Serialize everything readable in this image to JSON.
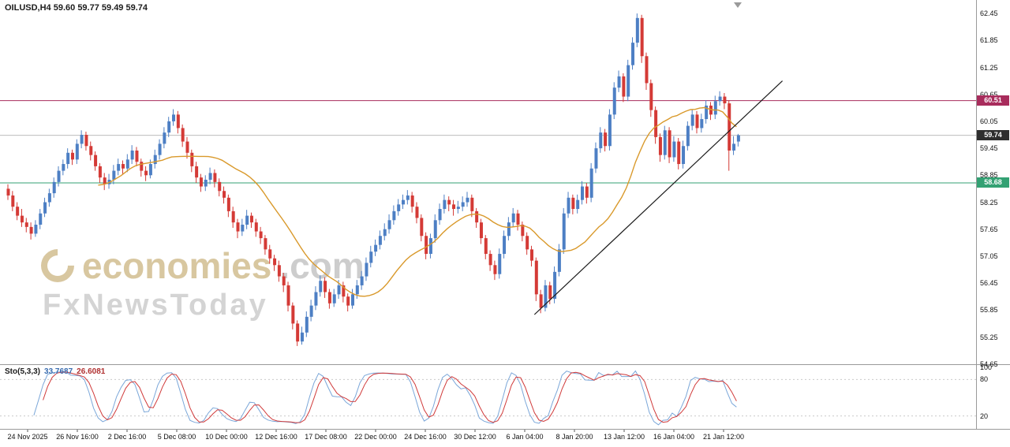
{
  "header": {
    "title": "OILUSD,H4 59.60 59.77 59.49 59.74"
  },
  "watermark": {
    "brand": "economies",
    "suffix": ".com",
    "tagline": "FxNewsToday"
  },
  "sto_header": {
    "label": "Sto(5,3,3)",
    "value_main": "33.7687",
    "value_signal": "26.6081"
  },
  "chart_data": {
    "type": "candlestick",
    "symbol": "OILUSD",
    "timeframe": "H4",
    "current_bar": {
      "open": 59.6,
      "high": 59.77,
      "low": 59.49,
      "close": 59.74
    },
    "ylim": [
      54.65,
      62.45
    ],
    "up_color": "#4d7fc4",
    "down_color": "#d43a36",
    "y_ticks": [
      "62.45",
      "61.85",
      "61.25",
      "60.65",
      "60.05",
      "59.45",
      "58.85",
      "58.25",
      "57.65",
      "57.05",
      "56.45",
      "55.85",
      "55.25",
      "54.65"
    ],
    "x_ticks": [
      "24 Nov 2025",
      "26 Nov 16:00",
      "2 Dec 16:00",
      "5 Dec 08:00",
      "10 Dec 00:00",
      "12 Dec 16:00",
      "17 Dec 08:00",
      "22 Dec 00:00",
      "24 Dec 16:00",
      "30 Dec 12:00",
      "6 Jan 04:00",
      "8 Jan 20:00",
      "13 Jan 12:00",
      "16 Jan 04:00",
      "21 Jan 12:00"
    ],
    "levels": [
      {
        "name": "resistance",
        "value": 60.51,
        "label": "60.51",
        "line_color": "#a82c5c",
        "label_bg": "#a82c5c"
      },
      {
        "name": "current-price",
        "value": 59.74,
        "label": "59.74",
        "line_color": "#bdbdbd",
        "label_bg": "#2e2e2e"
      },
      {
        "name": "support",
        "value": 58.68,
        "label": "58.68",
        "line_color": "#33a173",
        "label_bg": "#33a173"
      }
    ],
    "ma": {
      "period": 21,
      "color": "#d9992b"
    },
    "trendline": {
      "from_index": 115,
      "from_price": 55.75,
      "to_index": 169,
      "to_price": 60.95,
      "color": "#1b1b1b"
    },
    "indicator": {
      "name": "Stochastic",
      "params": "Sto(5,3,3)",
      "value_main": 33.7687,
      "value_signal": 26.6081,
      "main_color": "#7ba7d9",
      "signal_color": "#d03a3a",
      "levels": [
        20,
        80
      ],
      "axis": [
        {
          "label": "100",
          "value": 100
        },
        {
          "label": "80",
          "value": 80
        },
        {
          "label": "20",
          "value": 20
        }
      ]
    },
    "candles": [
      [
        58.55,
        58.65,
        58.3,
        58.4
      ],
      [
        58.4,
        58.5,
        58.05,
        58.15
      ],
      [
        58.15,
        58.25,
        57.85,
        57.95
      ],
      [
        57.95,
        58.1,
        57.7,
        57.8
      ],
      [
        57.8,
        57.9,
        57.58,
        57.7
      ],
      [
        57.7,
        57.8,
        57.42,
        57.55
      ],
      [
        57.55,
        57.85,
        57.48,
        57.75
      ],
      [
        57.75,
        58.1,
        57.65,
        58.0
      ],
      [
        58.0,
        58.35,
        57.92,
        58.25
      ],
      [
        58.25,
        58.55,
        58.15,
        58.45
      ],
      [
        58.45,
        58.8,
        58.35,
        58.7
      ],
      [
        58.7,
        59.05,
        58.6,
        58.95
      ],
      [
        58.95,
        59.2,
        58.85,
        59.1
      ],
      [
        59.1,
        59.45,
        59.0,
        59.35
      ],
      [
        59.35,
        59.42,
        59.08,
        59.2
      ],
      [
        59.2,
        59.65,
        59.1,
        59.55
      ],
      [
        59.55,
        59.85,
        59.45,
        59.75
      ],
      [
        59.75,
        59.82,
        59.4,
        59.5
      ],
      [
        59.5,
        59.6,
        59.18,
        59.3
      ],
      [
        59.3,
        59.38,
        58.95,
        59.05
      ],
      [
        59.05,
        59.12,
        58.68,
        58.8
      ],
      [
        58.8,
        58.9,
        58.52,
        58.65
      ],
      [
        58.65,
        58.88,
        58.55,
        58.75
      ],
      [
        58.75,
        59.08,
        58.65,
        58.95
      ],
      [
        58.95,
        59.22,
        58.85,
        59.1
      ],
      [
        59.1,
        59.18,
        58.88,
        59.0
      ],
      [
        59.0,
        59.32,
        58.92,
        59.2
      ],
      [
        59.2,
        59.52,
        59.1,
        59.4
      ],
      [
        59.4,
        59.48,
        59.05,
        59.15
      ],
      [
        59.15,
        59.22,
        58.82,
        58.95
      ],
      [
        58.95,
        59.05,
        58.72,
        58.85
      ],
      [
        58.85,
        59.2,
        58.78,
        59.1
      ],
      [
        59.1,
        59.42,
        59.0,
        59.3
      ],
      [
        59.3,
        59.65,
        59.2,
        59.55
      ],
      [
        59.55,
        59.92,
        59.45,
        59.8
      ],
      [
        59.8,
        60.15,
        59.7,
        60.05
      ],
      [
        60.05,
        60.32,
        59.95,
        60.2
      ],
      [
        60.2,
        60.28,
        59.78,
        59.9
      ],
      [
        59.9,
        59.98,
        59.48,
        59.6
      ],
      [
        59.6,
        59.7,
        59.22,
        59.35
      ],
      [
        59.35,
        59.42,
        58.92,
        59.05
      ],
      [
        59.05,
        59.15,
        58.68,
        58.8
      ],
      [
        58.8,
        58.88,
        58.48,
        58.6
      ],
      [
        58.6,
        58.85,
        58.5,
        58.75
      ],
      [
        58.75,
        59.02,
        58.65,
        58.9
      ],
      [
        58.9,
        58.98,
        58.58,
        58.7
      ],
      [
        58.7,
        58.78,
        58.38,
        58.5
      ],
      [
        58.5,
        58.6,
        58.22,
        58.35
      ],
      [
        58.35,
        58.42,
        57.92,
        58.05
      ],
      [
        58.05,
        58.15,
        57.68,
        57.8
      ],
      [
        57.8,
        57.88,
        57.45,
        57.6
      ],
      [
        57.6,
        57.88,
        57.5,
        57.75
      ],
      [
        57.75,
        58.08,
        57.65,
        57.95
      ],
      [
        57.95,
        58.02,
        57.68,
        57.8
      ],
      [
        57.8,
        57.88,
        57.48,
        57.6
      ],
      [
        57.6,
        57.7,
        57.32,
        57.45
      ],
      [
        57.45,
        57.52,
        57.08,
        57.2
      ],
      [
        57.2,
        57.3,
        56.88,
        57.0
      ],
      [
        57.0,
        57.08,
        56.72,
        56.85
      ],
      [
        56.85,
        56.95,
        56.48,
        56.6
      ],
      [
        56.6,
        56.68,
        56.25,
        56.4
      ],
      [
        56.4,
        56.48,
        55.82,
        55.95
      ],
      [
        55.95,
        56.02,
        55.42,
        55.55
      ],
      [
        55.55,
        55.62,
        55.05,
        55.15
      ],
      [
        55.15,
        55.48,
        55.08,
        55.35
      ],
      [
        55.35,
        55.82,
        55.25,
        55.7
      ],
      [
        55.7,
        56.08,
        55.6,
        55.95
      ],
      [
        55.95,
        56.38,
        55.85,
        56.25
      ],
      [
        56.25,
        56.62,
        56.15,
        56.5
      ],
      [
        56.5,
        56.58,
        56.12,
        56.25
      ],
      [
        56.25,
        56.32,
        55.88,
        56.0
      ],
      [
        56.0,
        56.32,
        55.92,
        56.2
      ],
      [
        56.2,
        56.52,
        56.1,
        56.4
      ],
      [
        56.4,
        56.48,
        56.02,
        56.15
      ],
      [
        56.15,
        56.22,
        55.82,
        55.95
      ],
      [
        55.95,
        56.32,
        55.88,
        56.2
      ],
      [
        56.2,
        56.52,
        56.1,
        56.4
      ],
      [
        56.4,
        56.72,
        56.3,
        56.6
      ],
      [
        56.6,
        57.02,
        56.5,
        56.9
      ],
      [
        56.9,
        57.28,
        56.8,
        57.15
      ],
      [
        57.15,
        57.42,
        57.05,
        57.3
      ],
      [
        57.3,
        57.62,
        57.2,
        57.5
      ],
      [
        57.5,
        57.78,
        57.4,
        57.65
      ],
      [
        57.65,
        57.98,
        57.55,
        57.85
      ],
      [
        57.85,
        58.18,
        57.75,
        58.05
      ],
      [
        58.05,
        58.32,
        57.95,
        58.2
      ],
      [
        58.2,
        58.42,
        58.1,
        58.3
      ],
      [
        58.3,
        58.52,
        58.2,
        58.4
      ],
      [
        58.4,
        58.48,
        58.02,
        58.15
      ],
      [
        58.15,
        58.25,
        57.78,
        57.9
      ],
      [
        57.9,
        57.98,
        57.38,
        57.5
      ],
      [
        57.5,
        57.58,
        56.98,
        57.1
      ],
      [
        57.1,
        57.55,
        57.0,
        57.45
      ],
      [
        57.45,
        57.98,
        57.35,
        57.85
      ],
      [
        57.85,
        58.22,
        57.75,
        58.1
      ],
      [
        58.1,
        58.42,
        58.0,
        58.3
      ],
      [
        58.3,
        58.38,
        58.05,
        58.2
      ],
      [
        58.2,
        58.3,
        57.95,
        58.1
      ],
      [
        58.1,
        58.28,
        58.0,
        58.15
      ],
      [
        58.15,
        58.38,
        58.05,
        58.25
      ],
      [
        58.25,
        58.48,
        58.15,
        58.35
      ],
      [
        58.35,
        58.42,
        57.92,
        58.05
      ],
      [
        58.05,
        58.12,
        57.68,
        57.8
      ],
      [
        57.8,
        57.88,
        57.32,
        57.45
      ],
      [
        57.45,
        57.52,
        56.98,
        57.1
      ],
      [
        57.1,
        57.18,
        56.72,
        56.85
      ],
      [
        56.85,
        56.95,
        56.52,
        56.65
      ],
      [
        56.65,
        57.22,
        56.55,
        57.1
      ],
      [
        57.1,
        57.62,
        57.0,
        57.5
      ],
      [
        57.5,
        57.92,
        57.4,
        57.8
      ],
      [
        57.8,
        58.12,
        57.7,
        58.0
      ],
      [
        58.0,
        58.08,
        57.62,
        57.75
      ],
      [
        57.75,
        57.82,
        57.38,
        57.5
      ],
      [
        57.5,
        57.58,
        57.08,
        57.2
      ],
      [
        57.2,
        57.28,
        56.82,
        56.95
      ],
      [
        56.95,
        57.02,
        56.05,
        56.2
      ],
      [
        56.2,
        56.3,
        55.78,
        55.9
      ],
      [
        55.9,
        56.52,
        55.82,
        56.4
      ],
      [
        56.4,
        56.48,
        55.98,
        56.1
      ],
      [
        56.1,
        56.82,
        56.0,
        56.7
      ],
      [
        56.7,
        57.32,
        56.6,
        57.2
      ],
      [
        57.2,
        58.12,
        57.1,
        58.0
      ],
      [
        58.0,
        58.48,
        57.9,
        58.35
      ],
      [
        58.35,
        58.42,
        57.98,
        58.1
      ],
      [
        58.1,
        58.42,
        58.0,
        58.3
      ],
      [
        58.3,
        58.72,
        58.2,
        58.6
      ],
      [
        58.6,
        58.68,
        58.22,
        58.35
      ],
      [
        58.35,
        59.12,
        58.25,
        59.0
      ],
      [
        59.0,
        59.58,
        58.9,
        59.45
      ],
      [
        59.45,
        59.92,
        59.35,
        59.8
      ],
      [
        59.8,
        59.88,
        59.38,
        59.5
      ],
      [
        59.5,
        60.32,
        59.4,
        60.2
      ],
      [
        60.2,
        60.92,
        60.1,
        60.8
      ],
      [
        60.8,
        61.18,
        60.7,
        61.05
      ],
      [
        61.05,
        61.12,
        60.48,
        60.6
      ],
      [
        60.6,
        61.42,
        60.5,
        61.3
      ],
      [
        61.3,
        61.92,
        61.2,
        61.8
      ],
      [
        61.8,
        62.45,
        61.7,
        62.35
      ],
      [
        62.35,
        62.42,
        61.35,
        61.5
      ],
      [
        61.5,
        61.58,
        60.75,
        60.9
      ],
      [
        60.9,
        60.98,
        60.15,
        60.3
      ],
      [
        60.3,
        60.38,
        59.55,
        59.7
      ],
      [
        59.7,
        59.78,
        59.15,
        59.3
      ],
      [
        59.3,
        59.95,
        59.2,
        59.85
      ],
      [
        59.85,
        59.92,
        59.12,
        59.25
      ],
      [
        59.25,
        59.72,
        59.15,
        59.6
      ],
      [
        59.6,
        59.68,
        58.98,
        59.1
      ],
      [
        59.1,
        59.62,
        59.0,
        59.5
      ],
      [
        59.5,
        60.05,
        59.4,
        59.95
      ],
      [
        59.95,
        60.32,
        59.85,
        60.2
      ],
      [
        60.2,
        60.28,
        59.78,
        59.9
      ],
      [
        59.9,
        60.22,
        59.8,
        60.1
      ],
      [
        60.1,
        60.52,
        60.0,
        60.4
      ],
      [
        60.4,
        60.48,
        60.08,
        60.2
      ],
      [
        60.2,
        60.62,
        60.1,
        60.5
      ],
      [
        60.5,
        60.72,
        60.4,
        60.6
      ],
      [
        60.6,
        60.68,
        60.32,
        60.45
      ],
      [
        60.45,
        60.52,
        58.95,
        59.4
      ],
      [
        59.4,
        59.72,
        59.3,
        59.55
      ],
      [
        59.6,
        59.77,
        59.49,
        59.74
      ]
    ]
  }
}
